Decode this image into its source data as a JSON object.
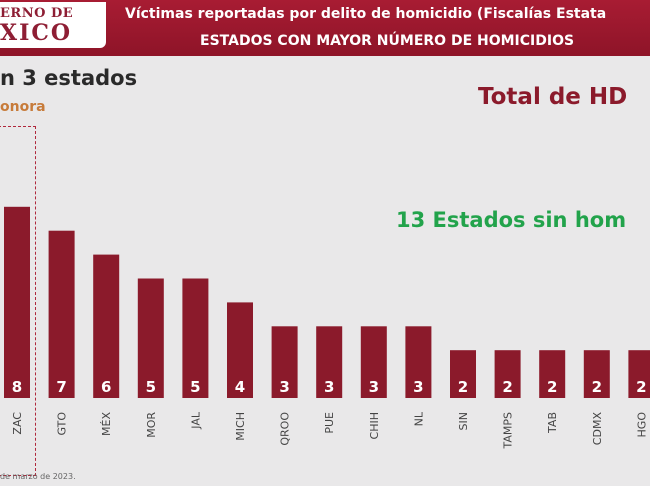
{
  "header": {
    "logo_line1": "ERNO DE",
    "logo_line2": "XICO",
    "title": "Víctimas reportadas por delito de homicidio (Fiscalías Estata",
    "subtitle": "ESTADOS CON MAYOR NÚMERO DE HOMICIDIOS"
  },
  "side": {
    "title": "n 3 estados",
    "subtitle": "onora"
  },
  "total_label": "Total de HD",
  "states_label": "13 Estados sin hom",
  "footer": "de marzo de 2023.",
  "colors": {
    "bar": "#8b1a2b",
    "header": "#9b1830",
    "green_text": "#22a34b"
  },
  "chart_data": {
    "type": "bar",
    "categories": [
      "ZAC",
      "GTO",
      "MÉX",
      "MOR",
      "JAL",
      "MICH",
      "QROO",
      "PUE",
      "CHIH",
      "NL",
      "SIN",
      "TAMPS",
      "TAB",
      "CDMX",
      "HGO"
    ],
    "values": [
      8,
      7,
      6,
      5,
      5,
      4,
      3,
      3,
      3,
      3,
      2,
      2,
      2,
      2,
      2
    ],
    "title": "",
    "xlabel": "",
    "ylabel": "",
    "ylim": [
      0,
      8
    ],
    "grid": false,
    "legend": "none",
    "data_labels": true
  }
}
